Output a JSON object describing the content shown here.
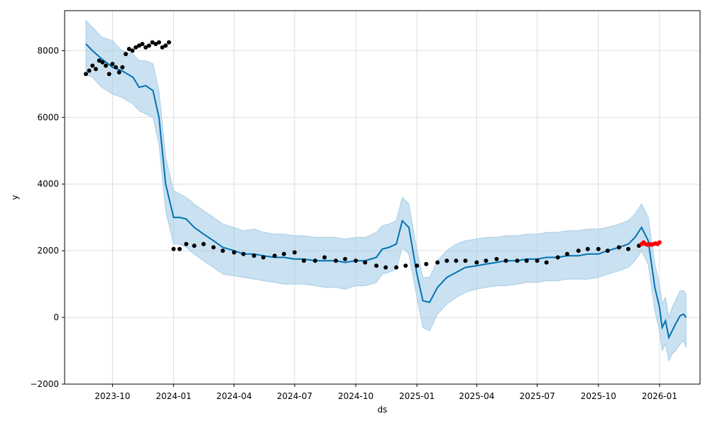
{
  "chart_data": {
    "type": "line",
    "xlabel": "ds",
    "ylabel": "y",
    "xlim": [
      "2023-07-21",
      "2026-03-03"
    ],
    "ylim": [
      -2000,
      9200
    ],
    "grid": true,
    "x_ticks": [
      "2023-10",
      "2024-01",
      "2024-04",
      "2024-07",
      "2024-10",
      "2025-01",
      "2025-04",
      "2025-07",
      "2025-10",
      "2026-01"
    ],
    "y_ticks": [
      -2000,
      0,
      2000,
      4000,
      6000,
      8000
    ],
    "colors": {
      "forecast_line": "#0072b2",
      "uncertainty_band": "#a7cde7",
      "observed_points": "#000000",
      "recent_points": "#ff0000",
      "grid": "#dddddd"
    },
    "series": [
      {
        "role": "forecast",
        "x": [
          "2023-08-22",
          "2023-09-01",
          "2023-09-15",
          "2023-10-01",
          "2023-10-15",
          "2023-11-01",
          "2023-11-10",
          "2023-11-20",
          "2023-12-01",
          "2023-12-10",
          "2023-12-20",
          "2024-01-01",
          "2024-01-10",
          "2024-01-20",
          "2024-02-01",
          "2024-02-15",
          "2024-03-01",
          "2024-03-15",
          "2024-04-01",
          "2024-04-15",
          "2024-05-01",
          "2024-05-15",
          "2024-06-01",
          "2024-06-15",
          "2024-07-01",
          "2024-07-15",
          "2024-08-01",
          "2024-08-15",
          "2024-09-01",
          "2024-09-15",
          "2024-10-01",
          "2024-10-15",
          "2024-11-01",
          "2024-11-10",
          "2024-11-20",
          "2024-12-01",
          "2024-12-10",
          "2024-12-20",
          "2025-01-01",
          "2025-01-10",
          "2025-01-20",
          "2025-02-01",
          "2025-02-15",
          "2025-03-01",
          "2025-03-15",
          "2025-04-01",
          "2025-04-15",
          "2025-05-01",
          "2025-05-15",
          "2025-06-01",
          "2025-06-15",
          "2025-07-01",
          "2025-07-15",
          "2025-08-01",
          "2025-08-15",
          "2025-09-01",
          "2025-09-15",
          "2025-10-01",
          "2025-10-15",
          "2025-11-01",
          "2025-11-15",
          "2025-11-25",
          "2025-12-05",
          "2025-12-15",
          "2025-12-25",
          "2026-01-01",
          "2026-01-05",
          "2026-01-10",
          "2026-01-15",
          "2026-01-20",
          "2026-01-25",
          "2026-02-01",
          "2026-02-06",
          "2026-02-10"
        ],
        "y": [
          8200,
          8000,
          7750,
          7500,
          7400,
          7200,
          6900,
          6950,
          6800,
          6000,
          4000,
          3000,
          3000,
          2950,
          2700,
          2500,
          2300,
          2100,
          2000,
          1900,
          1900,
          1850,
          1800,
          1800,
          1750,
          1750,
          1700,
          1700,
          1700,
          1650,
          1700,
          1700,
          1800,
          2050,
          2100,
          2200,
          2900,
          2700,
          1300,
          500,
          450,
          900,
          1200,
          1350,
          1500,
          1550,
          1600,
          1650,
          1700,
          1700,
          1750,
          1750,
          1800,
          1800,
          1850,
          1850,
          1900,
          1900,
          2000,
          2100,
          2200,
          2400,
          2700,
          2300,
          900,
          300,
          -300,
          -100,
          -600,
          -400,
          -200,
          50,
          100,
          0
        ]
      },
      {
        "role": "uncertainty",
        "x": [
          "2023-08-22",
          "2023-09-01",
          "2023-09-15",
          "2023-10-01",
          "2023-10-15",
          "2023-11-01",
          "2023-11-10",
          "2023-11-20",
          "2023-12-01",
          "2023-12-10",
          "2023-12-20",
          "2024-01-01",
          "2024-01-10",
          "2024-01-20",
          "2024-02-01",
          "2024-02-15",
          "2024-03-01",
          "2024-03-15",
          "2024-04-01",
          "2024-04-15",
          "2024-05-01",
          "2024-05-15",
          "2024-06-01",
          "2024-06-15",
          "2024-07-01",
          "2024-07-15",
          "2024-08-01",
          "2024-08-15",
          "2024-09-01",
          "2024-09-15",
          "2024-10-01",
          "2024-10-15",
          "2024-11-01",
          "2024-11-10",
          "2024-11-20",
          "2024-12-01",
          "2024-12-10",
          "2024-12-20",
          "2025-01-01",
          "2025-01-10",
          "2025-01-20",
          "2025-02-01",
          "2025-02-15",
          "2025-03-01",
          "2025-03-15",
          "2025-04-01",
          "2025-04-15",
          "2025-05-01",
          "2025-05-15",
          "2025-06-01",
          "2025-06-15",
          "2025-07-01",
          "2025-07-15",
          "2025-08-01",
          "2025-08-15",
          "2025-09-01",
          "2025-09-15",
          "2025-10-01",
          "2025-10-15",
          "2025-11-01",
          "2025-11-15",
          "2025-11-25",
          "2025-12-05",
          "2025-12-15",
          "2025-12-25",
          "2026-01-01",
          "2026-01-05",
          "2026-01-10",
          "2026-01-15",
          "2026-01-20",
          "2026-01-25",
          "2026-02-01",
          "2026-02-06",
          "2026-02-10"
        ],
        "upper": [
          8900,
          8700,
          8400,
          8300,
          8000,
          7900,
          7700,
          7700,
          7600,
          6800,
          4800,
          3800,
          3700,
          3600,
          3400,
          3200,
          3000,
          2800,
          2700,
          2600,
          2650,
          2550,
          2500,
          2500,
          2450,
          2450,
          2400,
          2400,
          2400,
          2350,
          2400,
          2400,
          2550,
          2750,
          2800,
          2900,
          3600,
          3400,
          2000,
          1200,
          1200,
          1700,
          2000,
          2200,
          2300,
          2350,
          2400,
          2400,
          2450,
          2450,
          2500,
          2500,
          2550,
          2550,
          2600,
          2600,
          2650,
          2650,
          2700,
          2800,
          2900,
          3100,
          3400,
          3000,
          1600,
          1000,
          400,
          600,
          0,
          300,
          500,
          800,
          800,
          700
        ],
        "lower": [
          7300,
          7200,
          6900,
          6700,
          6600,
          6400,
          6200,
          6100,
          6000,
          5200,
          3200,
          2200,
          2200,
          2100,
          1900,
          1700,
          1500,
          1300,
          1250,
          1200,
          1150,
          1100,
          1050,
          1000,
          1000,
          1000,
          950,
          900,
          900,
          850,
          950,
          950,
          1050,
          1300,
          1350,
          1450,
          2100,
          1900,
          600,
          -300,
          -400,
          100,
          400,
          600,
          750,
          850,
          900,
          950,
          950,
          1000,
          1050,
          1050,
          1100,
          1100,
          1150,
          1150,
          1150,
          1200,
          1300,
          1400,
          1500,
          1700,
          2000,
          1600,
          200,
          -400,
          -1000,
          -800,
          -1300,
          -1100,
          -1000,
          -800,
          -700,
          -900
        ]
      },
      {
        "role": "observed",
        "x": [
          "2023-08-22",
          "2023-08-27",
          "2023-09-01",
          "2023-09-06",
          "2023-09-11",
          "2023-09-16",
          "2023-09-21",
          "2023-09-26",
          "2023-10-01",
          "2023-10-06",
          "2023-10-11",
          "2023-10-16",
          "2023-10-21",
          "2023-10-26",
          "2023-10-31",
          "2023-11-05",
          "2023-11-10",
          "2023-11-15",
          "2023-11-20",
          "2023-11-25",
          "2023-11-30",
          "2023-12-05",
          "2023-12-10",
          "2023-12-15",
          "2023-12-20",
          "2023-12-25",
          "2024-01-01",
          "2024-01-10",
          "2024-01-20",
          "2024-02-01",
          "2024-02-15",
          "2024-03-01",
          "2024-03-15",
          "2024-04-01",
          "2024-04-15",
          "2024-05-01",
          "2024-05-15",
          "2024-06-01",
          "2024-06-15",
          "2024-07-01",
          "2024-07-15",
          "2024-08-01",
          "2024-08-15",
          "2024-09-01",
          "2024-09-15",
          "2024-10-01",
          "2024-10-15",
          "2024-11-01",
          "2024-11-15",
          "2024-12-01",
          "2024-12-15",
          "2025-01-01",
          "2025-01-15",
          "2025-02-01",
          "2025-02-15",
          "2025-03-01",
          "2025-03-15",
          "2025-04-01",
          "2025-04-15",
          "2025-05-01",
          "2025-05-15",
          "2025-06-01",
          "2025-06-15",
          "2025-07-01",
          "2025-07-15",
          "2025-08-01",
          "2025-08-15",
          "2025-09-01",
          "2025-09-15",
          "2025-10-01",
          "2025-10-15",
          "2025-11-01",
          "2025-11-15",
          "2025-12-01"
        ],
        "y": [
          7300,
          7400,
          7550,
          7450,
          7700,
          7650,
          7550,
          7300,
          7600,
          7500,
          7350,
          7500,
          7900,
          8050,
          8000,
          8100,
          8150,
          8200,
          8100,
          8150,
          8250,
          8200,
          8250,
          8100,
          8150,
          8250,
          2050,
          2050,
          2200,
          2150,
          2200,
          2100,
          2000,
          1950,
          1900,
          1850,
          1800,
          1850,
          1900,
          1950,
          1700,
          1700,
          1800,
          1700,
          1750,
          1700,
          1650,
          1550,
          1500,
          1500,
          1550,
          1550,
          1600,
          1650,
          1700,
          1700,
          1700,
          1650,
          1700,
          1750,
          1700,
          1700,
          1700,
          1700,
          1650,
          1800,
          1900,
          2000,
          2050,
          2050,
          2000,
          2100,
          2050,
          2150
        ]
      },
      {
        "role": "recent",
        "x": [
          "2025-12-05",
          "2025-12-08",
          "2025-12-11",
          "2025-12-14",
          "2025-12-17",
          "2025-12-20",
          "2025-12-23",
          "2025-12-26",
          "2025-12-29",
          "2026-01-01"
        ],
        "y": [
          2200,
          2250,
          2200,
          2180,
          2200,
          2180,
          2200,
          2220,
          2200,
          2250
        ]
      }
    ]
  }
}
